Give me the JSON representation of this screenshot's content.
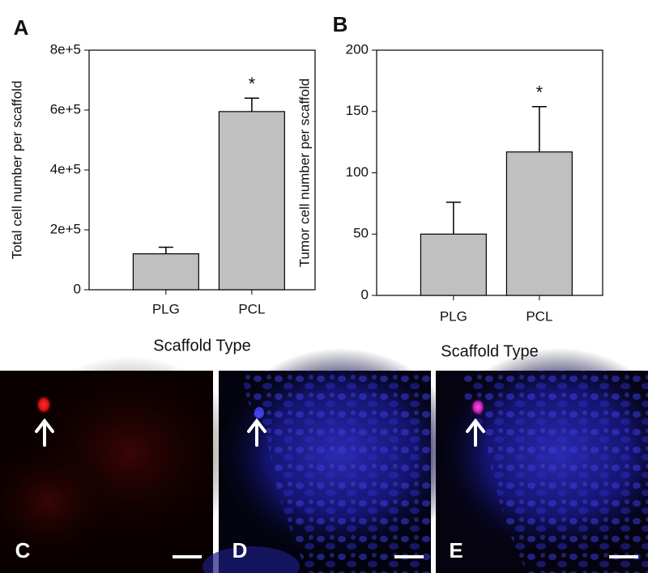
{
  "chart_data": [
    {
      "type": "bar",
      "panel": "A",
      "ylabel": "Total cell number per scaffold",
      "xlabel": "Scaffold Type",
      "categories": [
        "PLG",
        "PCL"
      ],
      "values": [
        120000,
        595000
      ],
      "errors": [
        22000,
        45000
      ],
      "color": "#c0c0c0",
      "annotation": "*",
      "ylim": [
        0,
        800000
      ],
      "yticks": [
        0,
        {
          "value": 200000,
          "label": "2e+5"
        },
        {
          "value": 400000,
          "label": "4e+5"
        },
        {
          "value": 600000,
          "label": "6e+5"
        },
        {
          "value": 800000,
          "label": "8e+5"
        }
      ]
    },
    {
      "type": "bar",
      "panel": "B",
      "ylabel": "Tumor cell number per scaffold",
      "xlabel": "Scaffold Type",
      "categories": [
        "PLG",
        "PCL"
      ],
      "values": [
        50,
        117
      ],
      "errors": [
        26,
        37
      ],
      "color": "#c0c0c0",
      "annotation": "*",
      "ylim": [
        0,
        200
      ],
      "yticks": [
        0,
        50,
        100,
        150,
        200
      ]
    }
  ],
  "images": [
    {
      "label": "C"
    },
    {
      "label": "D"
    },
    {
      "label": "E"
    }
  ]
}
